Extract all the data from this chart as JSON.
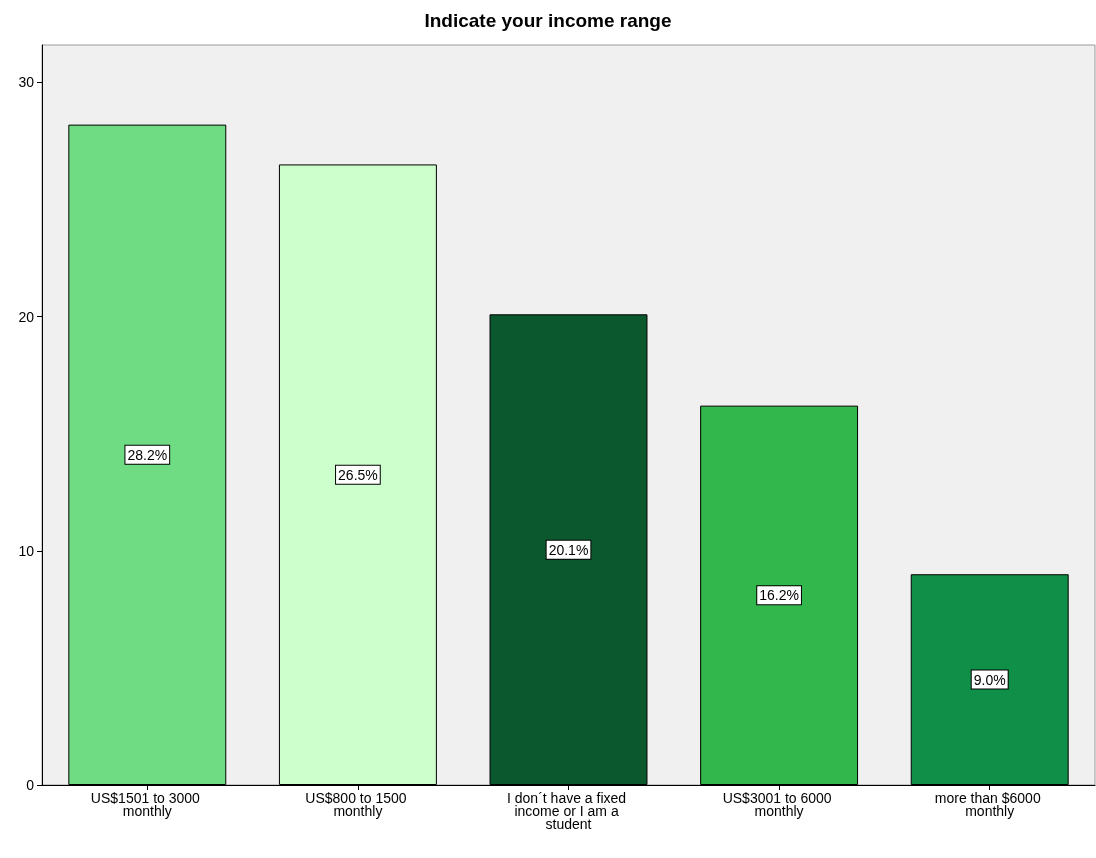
{
  "chart_data": {
    "type": "bar",
    "title": "Indicate your income range",
    "categories": [
      "US$1501 to 3000 monthly",
      "US$800 to 1500 monthly",
      "I don´t have a fixed income or I am a student",
      "US$3001 to 6000 monthly",
      "more than $6000 monthly"
    ],
    "values": [
      28.2,
      26.5,
      20.1,
      16.2,
      9.0
    ],
    "value_labels": [
      "28.2%",
      "26.5%",
      "20.1%",
      "16.2%",
      "9.0%"
    ],
    "colors": [
      "#6fdc84",
      "#ccffcc",
      "#0b572e",
      "#31b74b",
      "#0f8f47"
    ],
    "ylim": [
      0,
      31.6
    ],
    "yticks": [
      0,
      10,
      20,
      30
    ],
    "grid": false
  }
}
